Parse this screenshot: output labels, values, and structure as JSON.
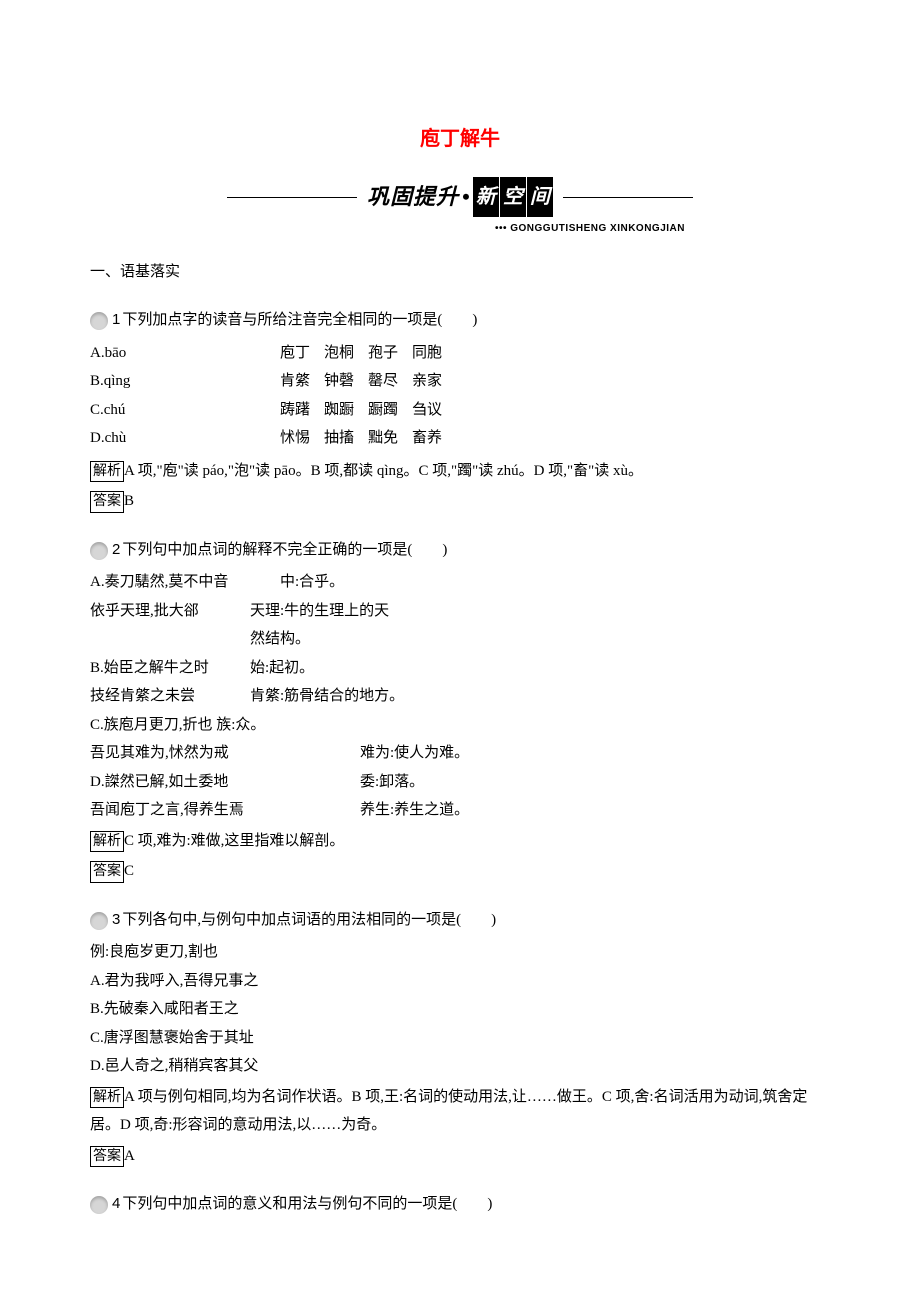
{
  "title": "庖丁解牛",
  "banner_text": "巩固提升",
  "banner_boxes": [
    "新",
    "空",
    "间"
  ],
  "banner_sub_dots": "•••",
  "banner_sub_pinyin": "GONGGUTISHENG XINKONGJIAN",
  "section1_header": "一、语基落实",
  "colors": {
    "title": "#ff0000",
    "text": "#000000",
    "background": "#ffffff",
    "icon_bg": "#d6d6d6"
  },
  "labels": {
    "analysis": "解析",
    "answer": "答案"
  },
  "q1": {
    "number": "1",
    "stem": "下列加点字的读音与所给注音完全相同的一项是(　　)",
    "rows": [
      {
        "label": "A.bāo",
        "words": [
          "庖丁",
          "泡桐",
          "孢子",
          "同胞"
        ]
      },
      {
        "label": "B.qìng",
        "words": [
          "肯綮",
          "钟磬",
          "罄尽",
          "亲家"
        ]
      },
      {
        "label": "C.chú",
        "words": [
          "踌躇",
          "踟蹰",
          "蹰躅",
          "刍议"
        ]
      },
      {
        "label": "D.chù",
        "words": [
          "怵惕",
          "抽搐",
          "黜免",
          "畜养"
        ]
      }
    ],
    "analysis": "A 项,\"庖\"读 páo,\"泡\"读 pāo。B 项,都读 qìng。C 项,\"躅\"读 zhú。D 项,\"畜\"读 xù。",
    "answer": "B"
  },
  "q2": {
    "number": "2",
    "stem": "下列句中加点词的解释不完全正确的一项是(　　)",
    "items": [
      {
        "left": "A.奏刀騞然,莫不中音",
        "right": "中:合乎。"
      },
      {
        "left": "依乎天理,批大郤",
        "right": "天理:牛的生理上的天"
      },
      {
        "left": "",
        "right": "然结构。"
      },
      {
        "left": "B.始臣之解牛之时",
        "right": "始:起初。",
        "narrow": true
      },
      {
        "left": "技经肯綮之未尝",
        "right": "肯綮:筋骨结合的地方。",
        "narrow": true
      },
      {
        "left_wide": true,
        "left": "C.族庖月更刀,折也 族:众。"
      },
      {
        "left": "吾见其难为,怵然为戒",
        "wide": true,
        "right": "难为:使人为难。"
      },
      {
        "left": "D.謋然已解,如土委地",
        "wide": true,
        "right": "委:卸落。"
      },
      {
        "left": "吾闻庖丁之言,得养生焉",
        "wide": true,
        "right": "养生:养生之道。"
      }
    ],
    "analysis": "C 项,难为:难做,这里指难以解剖。",
    "answer": "C"
  },
  "q3": {
    "number": "3",
    "stem": "下列各句中,与例句中加点词语的用法相同的一项是(　　)",
    "example": "例:良庖岁更刀,割也",
    "options": [
      "A.君为我呼入,吾得兄事之",
      "B.先破秦入咸阳者王之",
      "C.唐浮图慧褒始舍于其址",
      "D.邑人奇之,稍稍宾客其父"
    ],
    "analysis": "A 项与例句相同,均为名词作状语。B 项,王:名词的使动用法,让……做王。C 项,舍:名词活用为动词,筑舍定居。D 项,奇:形容词的意动用法,以……为奇。",
    "answer": "A"
  },
  "q4": {
    "number": "4",
    "stem": "下列句中加点词的意义和用法与例句不同的一项是(　　)"
  }
}
